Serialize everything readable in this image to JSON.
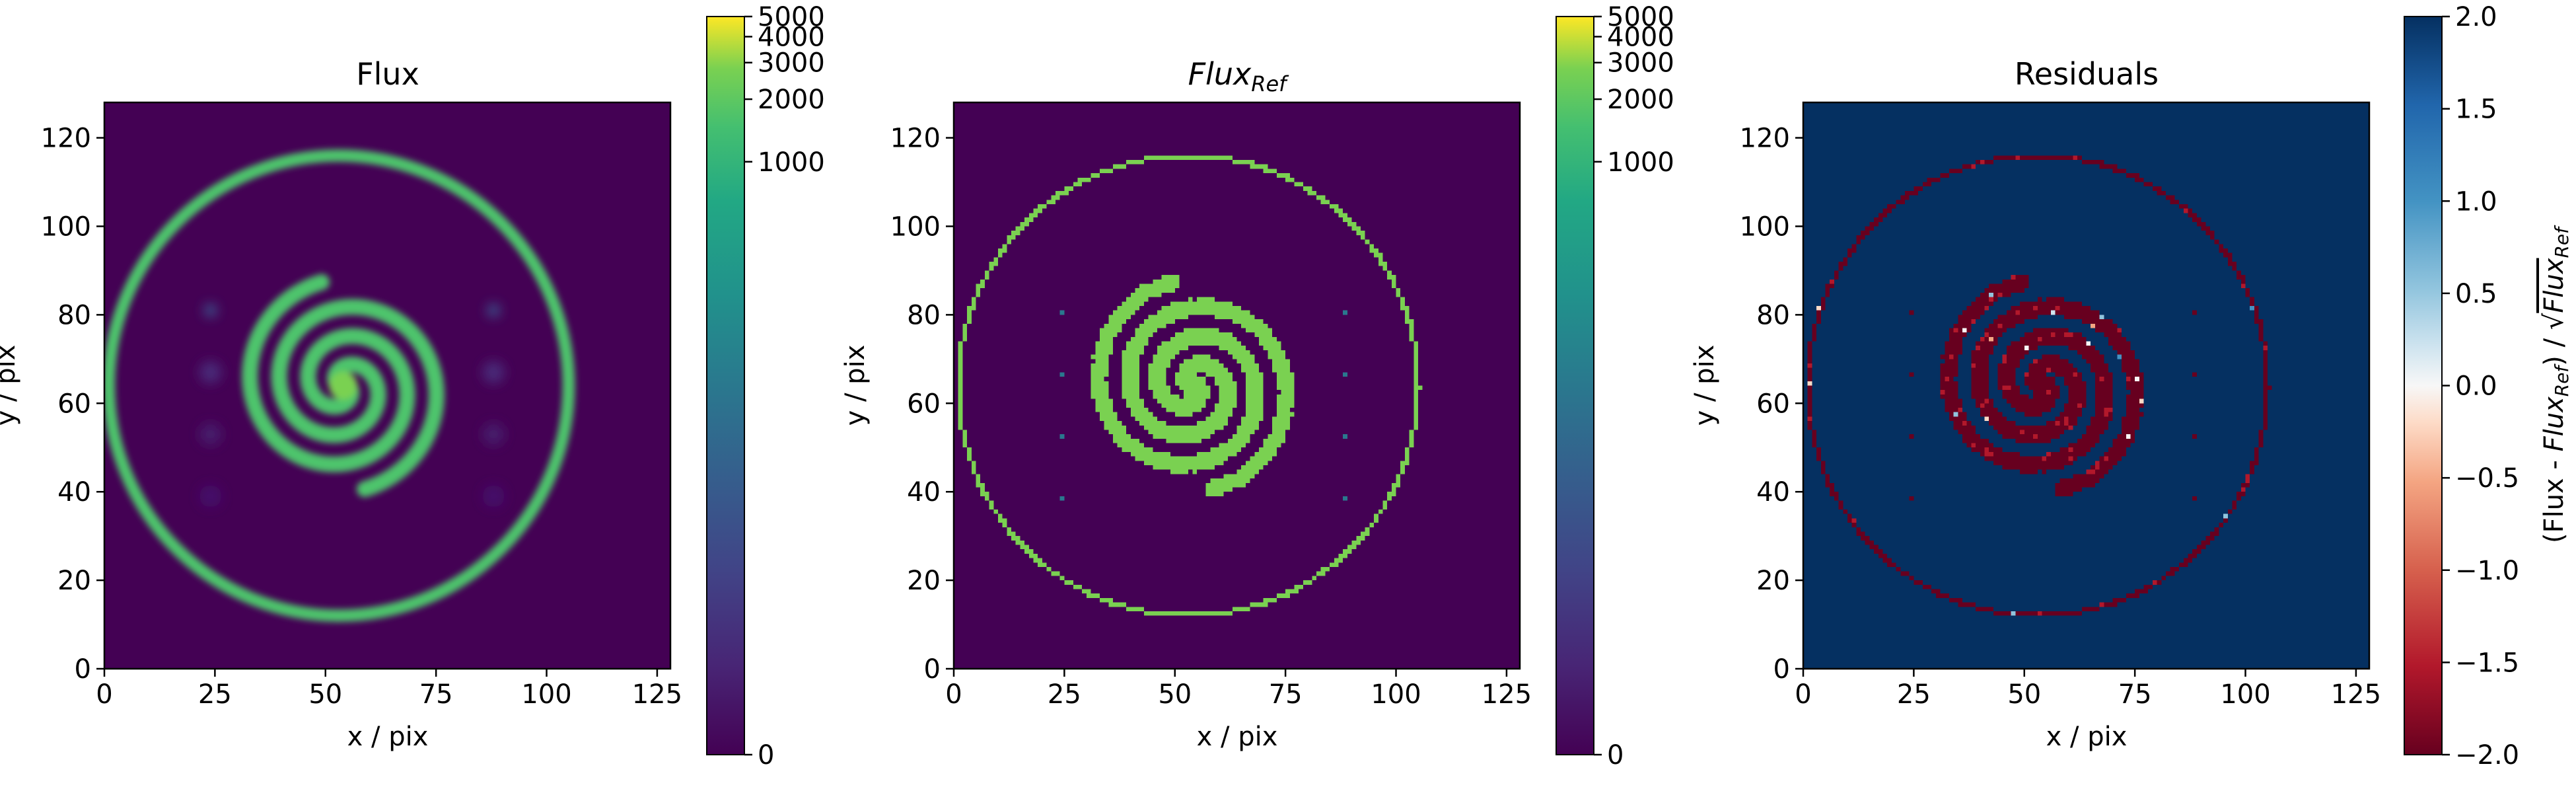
{
  "chart_data": [
    {
      "type": "heatmap",
      "title": "Flux",
      "xlabel": "x / pix",
      "ylabel": "y / pix",
      "xlim": [
        0,
        128
      ],
      "ylim": [
        0,
        128
      ],
      "xticks": [
        0,
        25,
        50,
        75,
        100,
        125
      ],
      "yticks": [
        0,
        20,
        40,
        60,
        80,
        100,
        120
      ],
      "colormap": "viridis",
      "colorbar": {
        "scale": "symlog",
        "range": [
          0,
          5000
        ],
        "ticks": [
          0,
          1000,
          2000,
          3000,
          4000,
          5000
        ]
      },
      "background_value": 0,
      "features": {
        "ring": {
          "center": [
            53,
            64
          ],
          "radius": 52,
          "value": 1300
        },
        "spiral": {
          "center": [
            54,
            64
          ],
          "arms": 2,
          "outer_radius": 24,
          "value": 1400
        },
        "point_sources": [
          [
            24,
            81
          ],
          [
            88,
            81
          ],
          [
            24,
            67
          ],
          [
            88,
            67
          ],
          [
            24,
            53
          ],
          [
            88,
            53
          ],
          [
            24,
            39
          ],
          [
            88,
            39
          ]
        ]
      }
    },
    {
      "type": "heatmap",
      "title_main": "Flux",
      "title_sub": "Ref",
      "xlabel": "x / pix",
      "ylabel": "y / pix",
      "xlim": [
        0,
        128
      ],
      "ylim": [
        0,
        128
      ],
      "xticks": [
        0,
        25,
        50,
        75,
        100,
        125
      ],
      "yticks": [
        0,
        20,
        40,
        60,
        80,
        100,
        120
      ],
      "colormap": "viridis",
      "colorbar": {
        "scale": "symlog",
        "range": [
          0,
          5000
        ],
        "ticks": [
          0,
          1000,
          2000,
          3000,
          4000,
          5000
        ]
      },
      "background_value": 0,
      "features": {
        "ring": {
          "center": [
            53,
            64
          ],
          "radius": 52,
          "value": 1300
        },
        "spiral": {
          "center": [
            54,
            64
          ],
          "arms": 2,
          "outer_radius": 24,
          "value": 1300
        },
        "point_sources": [
          [
            24,
            81
          ],
          [
            88,
            81
          ],
          [
            24,
            67
          ],
          [
            88,
            67
          ],
          [
            24,
            53
          ],
          [
            88,
            53
          ],
          [
            24,
            39
          ],
          [
            88,
            39
          ]
        ]
      }
    },
    {
      "type": "heatmap",
      "title": "Residuals",
      "xlabel": "x / pix",
      "ylabel": "y / pix",
      "xlim": [
        0,
        128
      ],
      "ylim": [
        0,
        128
      ],
      "xticks": [
        0,
        25,
        50,
        75,
        100,
        125
      ],
      "yticks": [
        0,
        20,
        40,
        60,
        80,
        100,
        120
      ],
      "colormap": "RdBu",
      "colorbar": {
        "range": [
          -2.0,
          2.0
        ],
        "ticks": [
          "2.0",
          "1.5",
          "1.0",
          "0.5",
          "0.0",
          "−0.5",
          "−1.0",
          "−1.5",
          "−2.0"
        ],
        "label": "(Flux - Flux_Ref) / √Flux_Ref"
      },
      "background_value": 2.0,
      "features": {
        "ring_value": -2.0,
        "spiral_value": -2.0
      }
    }
  ],
  "colorbar_label": {
    "pre": "(Flux - ",
    "flux": "Flux",
    "ref": "Ref",
    "mid": ") / ",
    "sqrt": "√"
  }
}
